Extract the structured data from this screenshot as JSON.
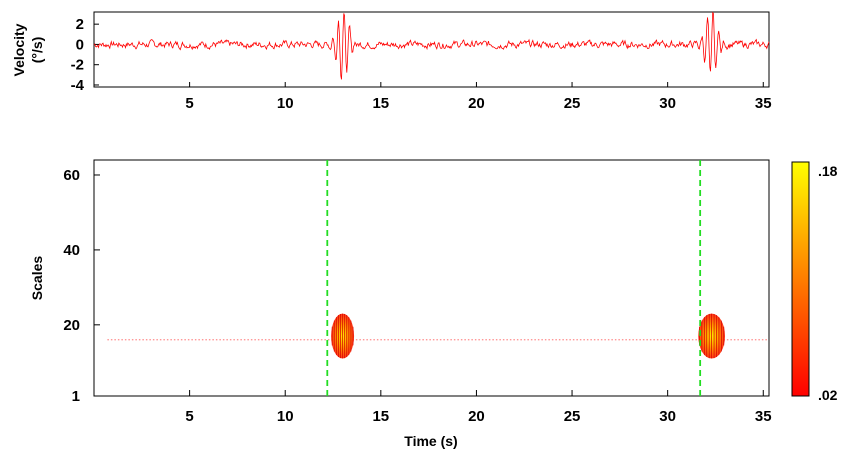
{
  "chart_data": [
    {
      "type": "line",
      "ylabel": [
        "Velocity",
        "(°/s)"
      ],
      "xlim": [
        0,
        35.3
      ],
      "ylim": [
        -4.2,
        3.2
      ],
      "xticks": [
        5,
        10,
        15,
        20,
        25,
        30,
        35
      ],
      "yticks": [
        2,
        0,
        -2,
        -4
      ],
      "xtick_labels": [
        "5",
        "10",
        "15",
        "20",
        "25",
        "30",
        "35"
      ],
      "ytick_labels": [
        "2",
        "0",
        "-2",
        "-4"
      ],
      "series_color": "#ff0000",
      "bursts": [
        {
          "center": 13.0,
          "amplitude": 3.3,
          "duration": 1.2
        },
        {
          "center": 32.3,
          "amplitude": 3.3,
          "duration": 1.2
        }
      ]
    },
    {
      "type": "heatmap",
      "xlabel": "Time (s)",
      "ylabel": "Scales",
      "xlim": [
        0,
        35.3
      ],
      "ylim": [
        1,
        64
      ],
      "xticks": [
        5,
        10,
        15,
        20,
        25,
        30,
        35
      ],
      "yticks": [
        60,
        40,
        20,
        1
      ],
      "xtick_labels": [
        "5",
        "10",
        "15",
        "20",
        "25",
        "30",
        "35"
      ],
      "ytick_labels": [
        "60",
        "40",
        "20",
        "1"
      ],
      "reference_scale": 16,
      "event_lines": [
        12.2,
        31.7
      ],
      "blobs": [
        {
          "x": 13.0,
          "y": 17,
          "x_halfwidth": 0.6,
          "y_halfwidth": 6
        },
        {
          "x": 32.3,
          "y": 17,
          "x_halfwidth": 0.7,
          "y_halfwidth": 6
        }
      ],
      "colorbar": {
        "min_label": ".02",
        "max_label": ".18",
        "min_color": "#ff0000",
        "max_color": "#ffff00"
      }
    }
  ]
}
